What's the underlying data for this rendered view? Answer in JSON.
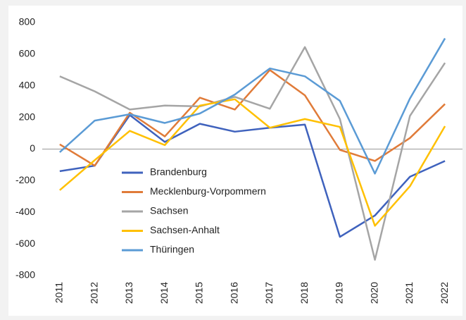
{
  "chart_data": {
    "type": "line",
    "categories": [
      "2011",
      "2012",
      "2013",
      "2014",
      "2015",
      "2016",
      "2017",
      "2018",
      "2019",
      "2020",
      "2021",
      "2022"
    ],
    "series": [
      {
        "name": "Brandenburg",
        "color": "#3f62bd",
        "values": [
          -140,
          -105,
          215,
          45,
          160,
          110,
          135,
          155,
          -555,
          -420,
          -175,
          -75
        ]
      },
      {
        "name": "Mecklenburg-Vorpommern",
        "color": "#e07b39",
        "values": [
          30,
          -105,
          230,
          80,
          325,
          250,
          500,
          340,
          -5,
          -75,
          70,
          285
        ]
      },
      {
        "name": "Sachsen",
        "color": "#a5a5a5",
        "values": [
          460,
          365,
          250,
          275,
          270,
          330,
          255,
          645,
          190,
          -700,
          210,
          545
        ]
      },
      {
        "name": "Sachsen-Anhalt",
        "color": "#ffc000",
        "values": [
          -260,
          -70,
          115,
          25,
          275,
          315,
          135,
          190,
          140,
          -485,
          -235,
          145
        ]
      },
      {
        "name": "Thüringen",
        "color": "#5b9bd5",
        "values": [
          -20,
          180,
          220,
          165,
          225,
          345,
          510,
          460,
          305,
          -155,
          320,
          700
        ]
      }
    ],
    "ylim": [
      -800,
      800
    ],
    "yticks": [
      -800,
      -600,
      -400,
      -200,
      0,
      200,
      400,
      600,
      800
    ],
    "legend": "lower-left"
  }
}
